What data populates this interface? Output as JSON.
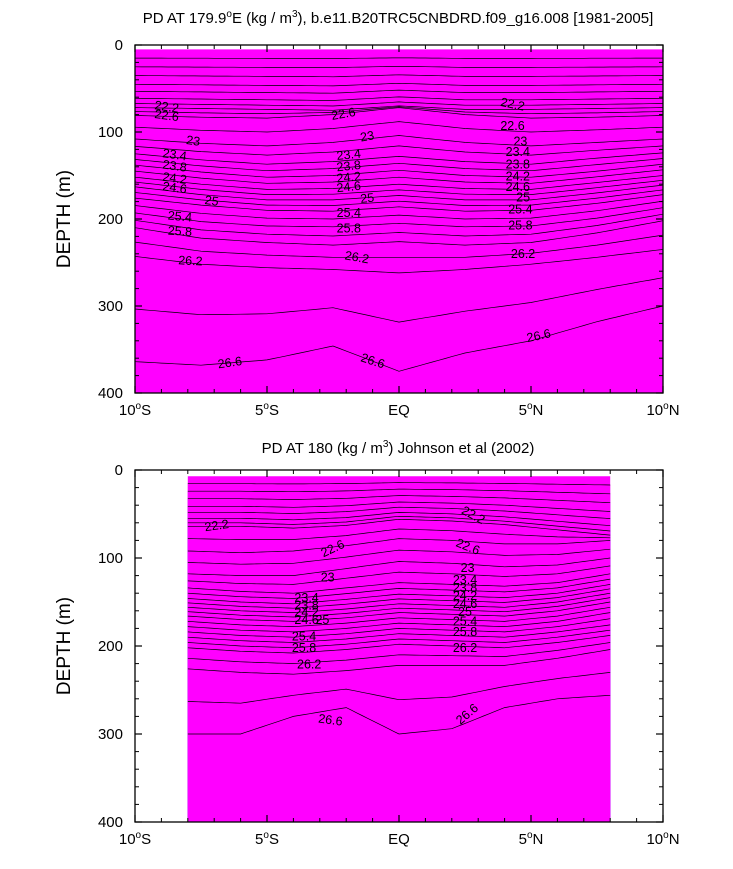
{
  "chart_data": [
    {
      "type": "contour",
      "title": "PD AT 179.9°E (kg / m³), b.e11.B20TRC5CNBDRD.f09_g16.008 [1981-2005]",
      "title_parts": {
        "prefix": "PD AT 179.9",
        "deg": "o",
        "mid": "E (kg / m",
        "sup": "3",
        "suffix": "), b.e11.B20TRC5CNBDRD.f09_g16.008 [1981-2005]"
      },
      "ylabel": "DEPTH (m)",
      "xlabel": "",
      "xlim": [
        -10,
        10
      ],
      "ylim": [
        0,
        400
      ],
      "y_inverted": true,
      "x_ticks": [
        -10,
        -5,
        0,
        5,
        10
      ],
      "x_tick_labels": [
        "10°S",
        "5°S",
        "EQ",
        "5°N",
        "10°N"
      ],
      "x_tick_label_parts": [
        [
          "10",
          "S"
        ],
        [
          "5",
          "S"
        ],
        [
          "EQ",
          ""
        ],
        [
          "5",
          "N"
        ],
        [
          "10",
          "N"
        ]
      ],
      "y_ticks": [
        0,
        100,
        200,
        300,
        400
      ],
      "y_tick_labels": [
        "0",
        "100",
        "200",
        "300",
        "400"
      ],
      "data_xlim": [
        -10,
        10
      ],
      "data_top_depth": 5,
      "contour_levels": [
        21.4,
        21.6,
        21.8,
        22.0,
        22.2,
        22.4,
        22.6,
        22.8,
        23.0,
        23.2,
        23.4,
        23.6,
        23.8,
        24.0,
        24.2,
        24.4,
        24.6,
        24.8,
        25.0,
        25.2,
        25.4,
        25.6,
        25.8,
        26.0,
        26.2,
        26.4,
        26.6
      ],
      "contour_depths": {
        "x": [
          -10,
          -7.5,
          -5,
          -2.5,
          0,
          2.5,
          5,
          7.5,
          10
        ],
        "levels": {
          "22.2": [
            72,
            73,
            74,
            75,
            70,
            74,
            74,
            73,
            72
          ],
          "22.6": [
            81,
            83,
            84,
            80,
            72,
            80,
            84,
            83,
            81
          ],
          "23": [
            108,
            113,
            116,
            112,
            104,
            112,
            116,
            112,
            108
          ],
          "23.4": [
            125,
            132,
            137,
            134,
            128,
            134,
            137,
            130,
            124
          ],
          "23.8": [
            138,
            146,
            152,
            150,
            144,
            150,
            152,
            145,
            137
          ],
          "24.2": [
            152,
            160,
            166,
            165,
            160,
            165,
            166,
            158,
            150
          ],
          "24.6": [
            163,
            172,
            178,
            178,
            173,
            178,
            178,
            170,
            161
          ],
          "25": [
            176,
            184,
            190,
            191,
            186,
            191,
            190,
            182,
            172
          ],
          "25.4": [
            193,
            203,
            208,
            209,
            205,
            209,
            208,
            199,
            187
          ],
          "25.8": [
            210,
            222,
            227,
            230,
            226,
            230,
            227,
            216,
            202
          ],
          "26.2": [
            243,
            252,
            256,
            258,
            262,
            258,
            252,
            244,
            235
          ],
          "26.6": [
            364,
            368,
            362,
            346,
            375,
            354,
            340,
            318,
            300
          ]
        }
      },
      "labels": [
        {
          "text": "22.2",
          "x": -8.8,
          "y": 72,
          "angle": 8
        },
        {
          "text": "22.6",
          "x": -8.8,
          "y": 82,
          "angle": 8
        },
        {
          "text": "23",
          "x": -7.8,
          "y": 111,
          "angle": 8
        },
        {
          "text": "23.4",
          "x": -8.5,
          "y": 127,
          "angle": 8
        },
        {
          "text": "23.8",
          "x": -8.5,
          "y": 140,
          "angle": 8
        },
        {
          "text": "24.2",
          "x": -8.5,
          "y": 154,
          "angle": 8
        },
        {
          "text": "24.6",
          "x": -8.5,
          "y": 165,
          "angle": 8
        },
        {
          "text": "25",
          "x": -7.1,
          "y": 180,
          "angle": 8
        },
        {
          "text": "25.4",
          "x": -8.3,
          "y": 198,
          "angle": 5
        },
        {
          "text": "25.8",
          "x": -8.3,
          "y": 215,
          "angle": 3
        },
        {
          "text": "26.2",
          "x": -7.9,
          "y": 249,
          "angle": 3
        },
        {
          "text": "26.6",
          "x": -6.4,
          "y": 366,
          "angle": -8
        },
        {
          "text": "22.6",
          "x": -2.1,
          "y": 80,
          "angle": -10
        },
        {
          "text": "23",
          "x": -1.2,
          "y": 106,
          "angle": -10
        },
        {
          "text": "23.4",
          "x": -1.9,
          "y": 127,
          "angle": -6
        },
        {
          "text": "23.8",
          "x": -1.9,
          "y": 140,
          "angle": -6
        },
        {
          "text": "24.2",
          "x": -1.9,
          "y": 153,
          "angle": -6
        },
        {
          "text": "24.6",
          "x": -1.9,
          "y": 164,
          "angle": -6
        },
        {
          "text": "25",
          "x": -1.2,
          "y": 177,
          "angle": -6
        },
        {
          "text": "25.4",
          "x": -1.9,
          "y": 194,
          "angle": 0
        },
        {
          "text": "25.8",
          "x": -1.9,
          "y": 212,
          "angle": 0
        },
        {
          "text": "26.2",
          "x": -1.6,
          "y": 245,
          "angle": 10
        },
        {
          "text": "26.6",
          "x": -1.0,
          "y": 364,
          "angle": 18
        },
        {
          "text": "22.2",
          "x": 4.3,
          "y": 69,
          "angle": 12
        },
        {
          "text": "22.6",
          "x": 4.3,
          "y": 94,
          "angle": 0
        },
        {
          "text": "23",
          "x": 4.6,
          "y": 112,
          "angle": 0
        },
        {
          "text": "23.4",
          "x": 4.5,
          "y": 124,
          "angle": 0
        },
        {
          "text": "23.8",
          "x": 4.5,
          "y": 138,
          "angle": 0
        },
        {
          "text": "24.2",
          "x": 4.5,
          "y": 152,
          "angle": 0
        },
        {
          "text": "24.6",
          "x": 4.5,
          "y": 164,
          "angle": 0
        },
        {
          "text": "25",
          "x": 4.7,
          "y": 176,
          "angle": 0
        },
        {
          "text": "25.4",
          "x": 4.6,
          "y": 190,
          "angle": 0
        },
        {
          "text": "25.8",
          "x": 4.6,
          "y": 208,
          "angle": 0
        },
        {
          "text": "26.2",
          "x": 4.7,
          "y": 241,
          "angle": 0
        },
        {
          "text": "26.6",
          "x": 5.3,
          "y": 335,
          "angle": -12
        }
      ]
    },
    {
      "type": "contour",
      "title": "PD AT 180 (kg / m³) Johnson et al (2002)",
      "title_parts": {
        "prefix": "PD AT 180 (kg / m",
        "sup": "3",
        "suffix": ") Johnson et al (2002)"
      },
      "ylabel": "DEPTH (m)",
      "xlabel": "",
      "xlim": [
        -10,
        10
      ],
      "ylim": [
        0,
        400
      ],
      "y_inverted": true,
      "x_ticks": [
        -10,
        -5,
        0,
        5,
        10
      ],
      "x_tick_labels": [
        "10°S",
        "5°S",
        "EQ",
        "5°N",
        "10°N"
      ],
      "x_tick_label_parts": [
        [
          "10",
          "S"
        ],
        [
          "5",
          "S"
        ],
        [
          "EQ",
          ""
        ],
        [
          "5",
          "N"
        ],
        [
          "10",
          "N"
        ]
      ],
      "y_ticks": [
        0,
        100,
        200,
        300,
        400
      ],
      "y_tick_labels": [
        "0",
        "100",
        "200",
        "300",
        "400"
      ],
      "data_xlim": [
        -8,
        8
      ],
      "data_top_depth": 7,
      "contour_levels": [
        21.4,
        21.6,
        21.8,
        22.0,
        22.2,
        22.4,
        22.6,
        22.8,
        23.0,
        23.2,
        23.4,
        23.6,
        23.8,
        24.0,
        24.2,
        24.4,
        24.6,
        24.8,
        25.0,
        25.2,
        25.4,
        25.6,
        25.8,
        26.0,
        26.2,
        26.4,
        26.6
      ],
      "contour_depths": {
        "x": [
          -8,
          -6,
          -4,
          -2,
          0,
          2,
          4,
          6,
          8
        ],
        "levels": {
          "22.2": [
            64,
            64,
            66,
            63,
            56,
            58,
            62,
            68,
            74
          ],
          "22.6": [
            92,
            94,
            92,
            86,
            78,
            80,
            84,
            84,
            80
          ],
          "23": [
            118,
            120,
            120,
            112,
            104,
            106,
            110,
            108,
            100
          ],
          "23.4": [
            134,
            138,
            140,
            134,
            128,
            130,
            132,
            128,
            118
          ],
          "23.8": [
            146,
            150,
            152,
            147,
            141,
            143,
            145,
            140,
            130
          ],
          "24.2": [
            156,
            160,
            162,
            158,
            152,
            154,
            156,
            150,
            140
          ],
          "24.6": [
            166,
            170,
            172,
            168,
            162,
            164,
            166,
            160,
            150
          ],
          "25": [
            178,
            182,
            184,
            180,
            174,
            176,
            178,
            172,
            162
          ],
          "25.4": [
            190,
            194,
            196,
            192,
            186,
            188,
            190,
            184,
            176
          ],
          "25.8": [
            202,
            206,
            208,
            204,
            198,
            200,
            202,
            196,
            188
          ],
          "26.2": [
            226,
            230,
            232,
            228,
            222,
            222,
            222,
            214,
            204
          ],
          "26.6": [
            300,
            300,
            280,
            270,
            300,
            294,
            270,
            260,
            256
          ]
        }
      },
      "labels": [
        {
          "text": "22.2",
          "x": -6.9,
          "y": 64,
          "angle": -8
        },
        {
          "text": "22.6",
          "x": -2.5,
          "y": 90,
          "angle": -25
        },
        {
          "text": "23",
          "x": -2.7,
          "y": 123,
          "angle": 0
        },
        {
          "text": "23.4",
          "x": -3.5,
          "y": 146,
          "angle": 0
        },
        {
          "text": "23.8",
          "x": -3.5,
          "y": 155,
          "angle": 0
        },
        {
          "text": "24.2",
          "x": -3.5,
          "y": 163,
          "angle": 0
        },
        {
          "text": "24.6",
          "x": -3.5,
          "y": 171,
          "angle": 0
        },
        {
          "text": "25",
          "x": -2.9,
          "y": 171,
          "angle": 0
        },
        {
          "text": "25.4",
          "x": -3.6,
          "y": 190,
          "angle": 0
        },
        {
          "text": "25.8",
          "x": -3.6,
          "y": 203,
          "angle": 0
        },
        {
          "text": "26.2",
          "x": -3.4,
          "y": 222,
          "angle": 0
        },
        {
          "text": "26.6",
          "x": -2.6,
          "y": 285,
          "angle": 8
        },
        {
          "text": "22.2",
          "x": 2.8,
          "y": 52,
          "angle": 28
        },
        {
          "text": "22.6",
          "x": 2.6,
          "y": 88,
          "angle": 22
        },
        {
          "text": "23",
          "x": 2.6,
          "y": 112,
          "angle": 0
        },
        {
          "text": "23.4",
          "x": 2.5,
          "y": 126,
          "angle": 0
        },
        {
          "text": "23.8",
          "x": 2.5,
          "y": 135,
          "angle": 0
        },
        {
          "text": "24.2",
          "x": 2.5,
          "y": 144,
          "angle": 0
        },
        {
          "text": "24.6",
          "x": 2.5,
          "y": 153,
          "angle": 0
        },
        {
          "text": "25",
          "x": 2.5,
          "y": 162,
          "angle": 0
        },
        {
          "text": "25.4",
          "x": 2.5,
          "y": 173,
          "angle": 0
        },
        {
          "text": "25.8",
          "x": 2.5,
          "y": 185,
          "angle": 0
        },
        {
          "text": "26.2",
          "x": 2.5,
          "y": 203,
          "angle": 0
        },
        {
          "text": "26.6",
          "x": 2.6,
          "y": 278,
          "angle": -40
        }
      ]
    }
  ]
}
